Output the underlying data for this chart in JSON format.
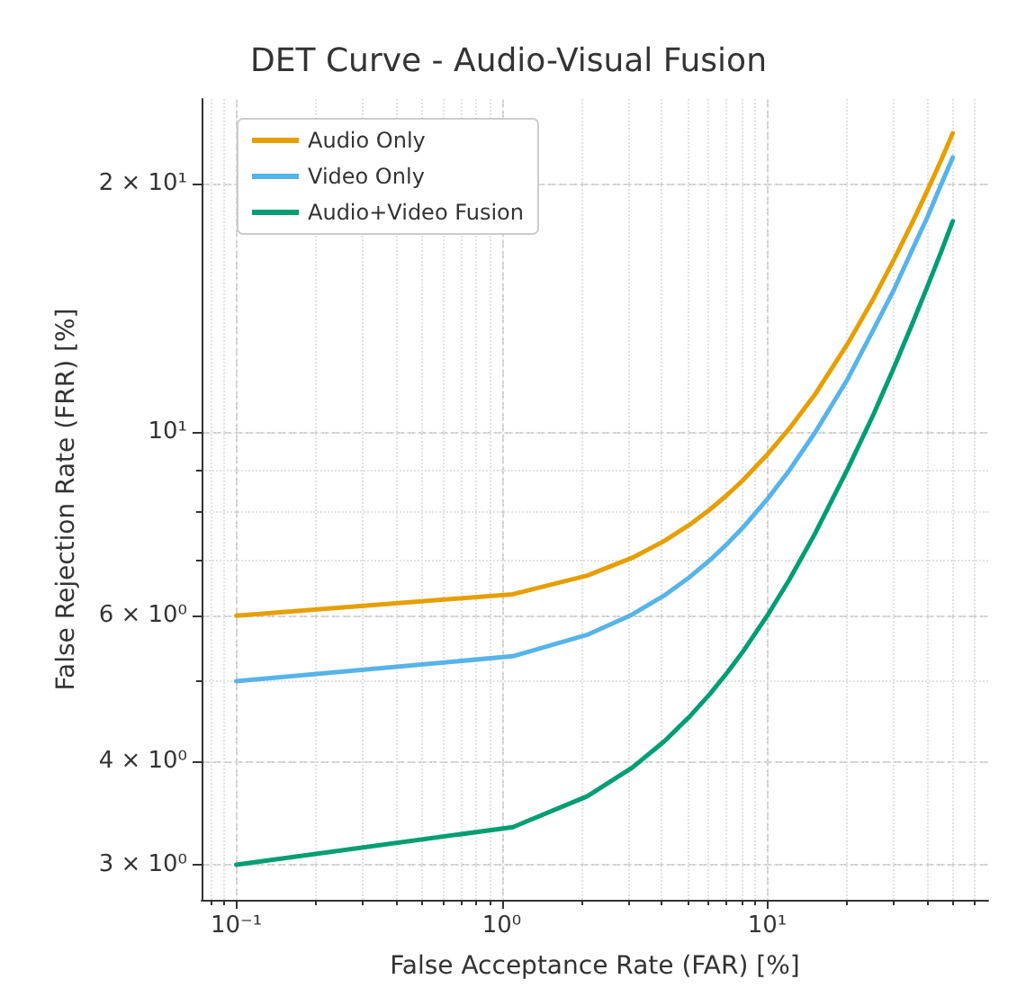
{
  "chart_data": {
    "type": "line",
    "title": "DET Curve - Audio-Visual Fusion",
    "xlabel": "False Acceptance Rate (FAR) [%]",
    "ylabel": "False Rejection Rate (FRR) [%]",
    "x": [
      0.1,
      1.1,
      2.1,
      3.1,
      4.1,
      5.1,
      6.1,
      7.1,
      8.1,
      10.1,
      12.1,
      15.1,
      20.1,
      25.1,
      30.1,
      35.1,
      40.1,
      45.1,
      50
    ],
    "series": [
      {
        "name": "Audio Only",
        "color": "#e69f00",
        "values": [
          6.0,
          6.37,
          6.71,
          7.05,
          7.39,
          7.73,
          8.07,
          8.41,
          8.75,
          9.43,
          10.1,
          11.1,
          12.8,
          14.5,
          16.2,
          17.9,
          19.6,
          21.3,
          23.0
        ]
      },
      {
        "name": "Video Only",
        "color": "#56b4e9",
        "values": [
          5.0,
          5.36,
          5.69,
          6.02,
          6.35,
          6.68,
          7.01,
          7.34,
          7.67,
          8.33,
          8.99,
          9.98,
          11.6,
          13.3,
          14.9,
          16.6,
          18.2,
          19.9,
          21.5
        ]
      },
      {
        "name": "Audio+Video Fusion",
        "color": "#009e73",
        "values": [
          3.0,
          3.33,
          3.63,
          3.93,
          4.23,
          4.53,
          4.83,
          5.13,
          5.43,
          6.03,
          6.63,
          7.53,
          9.03,
          10.5,
          12.0,
          13.5,
          15.0,
          16.5,
          18.0
        ]
      }
    ],
    "log": "xy",
    "xlim": [
      0.074,
      68
    ],
    "ylim": [
      2.72,
      25.3
    ],
    "xticks": [
      {
        "value": 0.1,
        "label": "10⁻¹"
      },
      {
        "value": 1,
        "label": "10⁰"
      },
      {
        "value": 10,
        "label": "10¹"
      }
    ],
    "yticks": [
      {
        "value": 3,
        "label": "3 × 10⁰"
      },
      {
        "value": 4,
        "label": "4 × 10⁰"
      },
      {
        "value": 6,
        "label": "6 × 10⁰"
      },
      {
        "value": 10,
        "label": "10¹"
      },
      {
        "value": 20,
        "label": "2 × 10¹"
      }
    ],
    "grid": true,
    "legend": "top left"
  }
}
